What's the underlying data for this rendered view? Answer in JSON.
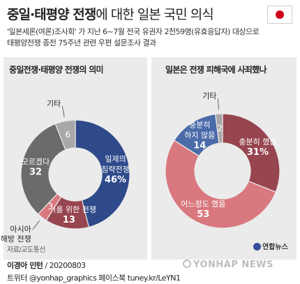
{
  "header": {
    "title_bold": "중일·태평양 전쟁",
    "title_rest": "에 대한 일본 국민 의식",
    "description_line1": "'일본세론(여론)조사회' 가 지난 6~7월 전국 유권자 2천59명(유효응답자) 대상으로",
    "description_line2": "태평양전쟁 종전 75주년 관련 우편 설문조사 결과"
  },
  "flag_colors": {
    "field": "#ffffff",
    "disc": "#d0021b"
  },
  "chart_data": [
    {
      "type": "pie",
      "style": "donut",
      "title": "중일전쟁·태평양 전쟁의 의미",
      "unit": "%",
      "slices": [
        {
          "lines": [
            "일제의",
            "침략전쟁"
          ],
          "value_label": "46%",
          "value": 46,
          "color": "#2e4a8a"
        },
        {
          "lines": [
            "자위를 위한 전쟁"
          ],
          "value_label": "13",
          "value": 13,
          "color": "#97454f"
        },
        {
          "lines": [
            "아시아",
            "해방 전쟁"
          ],
          "value_label": "3",
          "value": 3,
          "color": "#d9787e"
        },
        {
          "lines": [
            "모르겠다"
          ],
          "value_label": "32",
          "value": 32,
          "color": "#6b6b6b"
        },
        {
          "lines": [
            "기타"
          ],
          "value_label": "6",
          "value": 6,
          "color": "#a8a8a8"
        }
      ]
    },
    {
      "type": "pie",
      "style": "donut",
      "title": "일본은 전쟁 피해국에 사죄했나",
      "unit": "%",
      "slices": [
        {
          "lines": [
            "충분히 했음"
          ],
          "value_label": "31%",
          "value": 31,
          "color": "#97454f"
        },
        {
          "lines": [
            "어느정도 했음"
          ],
          "value_label": "53",
          "value": 53,
          "color": "#d9787e"
        },
        {
          "lines": [
            "충분히",
            "하지 않음"
          ],
          "value_label": "14",
          "value": 14,
          "color": "#4a6aa8"
        },
        {
          "lines": [
            "기타"
          ],
          "value_label": "2",
          "value": 2,
          "color": "#a8a8a8"
        }
      ]
    }
  ],
  "footer": {
    "source": "자료/교도통신",
    "author": "이경아 인턴",
    "date": "20200803",
    "social": "트위터 @yonhap_graphics  페이스북 tuney.kr/LeYN1",
    "logo_text": "연합뉴스",
    "watermark": "YONHAP NEWS"
  }
}
